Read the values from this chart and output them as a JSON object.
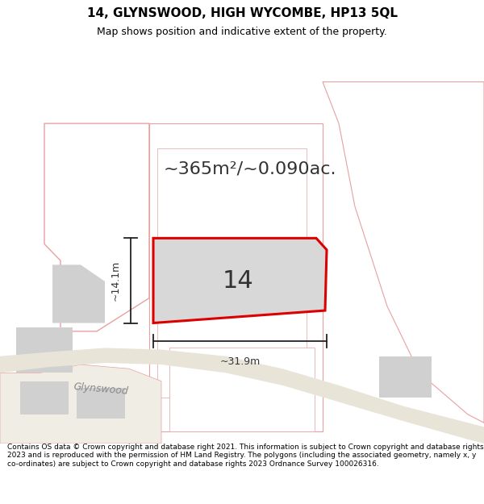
{
  "title": "14, GLYNSWOOD, HIGH WYCOMBE, HP13 5QL",
  "subtitle": "Map shows position and indicative extent of the property.",
  "area_text": "~365m²/~0.090ac.",
  "label_14": "14",
  "dim_width": "~31.9m",
  "dim_height": "~14.1m",
  "footer": "Contains OS data © Crown copyright and database right 2021. This information is subject to Crown copyright and database rights 2023 and is reproduced with the permission of HM Land Registry. The polygons (including the associated geometry, namely x, y co-ordinates) are subject to Crown copyright and database rights 2023 Ordnance Survey 100026316.",
  "bg_color": "#f8f8f8",
  "plot_fill": "#d8d8d8",
  "plot_edge": "#dd0000",
  "parcel_edge": "#e8a0a0",
  "building_fill": "#d0d0d0",
  "road_label_color": "#888888",
  "figsize": [
    6.0,
    6.25
  ],
  "dpi": 100
}
